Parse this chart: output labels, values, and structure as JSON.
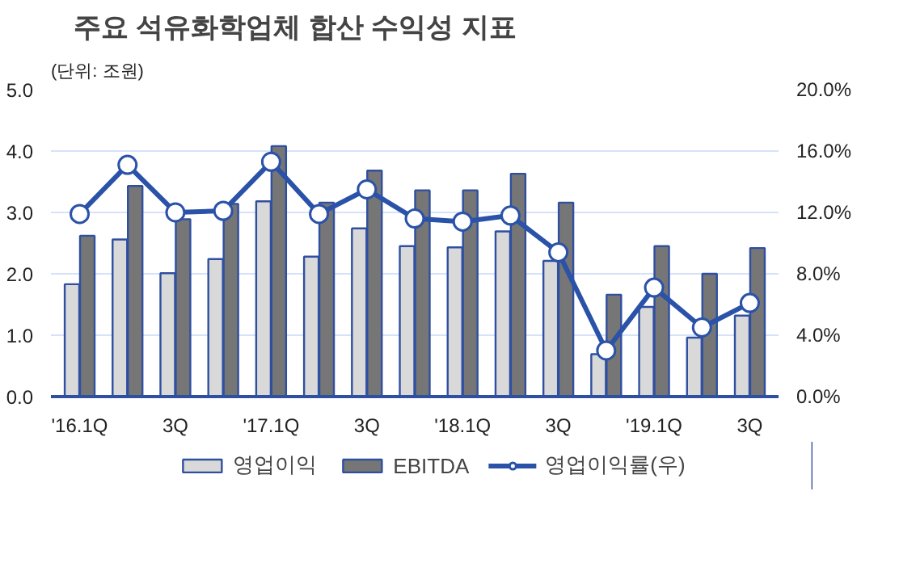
{
  "chart_data": {
    "type": "bar",
    "title": "주요 석유화학업체 합산 수익성 지표",
    "ylabel": "(단위: 조원)",
    "categories": [
      "'16.1Q",
      null,
      "3Q",
      null,
      "'17.1Q",
      null,
      "3Q",
      null,
      "'18.1Q",
      null,
      "3Q",
      null,
      "'19.1Q",
      null,
      "3Q"
    ],
    "series": [
      {
        "name": "영업이익",
        "color": "#d9d9d9",
        "values": [
          1.83,
          2.56,
          2.01,
          2.24,
          3.18,
          2.28,
          2.74,
          2.45,
          2.43,
          2.69,
          2.21,
          0.69,
          1.46,
          0.96,
          1.32
        ]
      },
      {
        "name": "EBITDA",
        "color": "#767676",
        "values": [
          2.62,
          3.43,
          2.89,
          3.14,
          4.08,
          3.16,
          3.68,
          3.36,
          3.36,
          3.63,
          3.16,
          1.66,
          2.45,
          2.0,
          2.42
        ]
      },
      {
        "name": "영업이익률(우)",
        "type": "line",
        "axis": "y2",
        "color": "#2a52a8",
        "marker": "circle",
        "values": [
          11.9,
          15.1,
          12.0,
          12.1,
          15.3,
          11.9,
          13.5,
          11.6,
          11.4,
          11.8,
          9.4,
          3.0,
          7.1,
          4.5,
          6.1
        ]
      }
    ],
    "ylim": [
      0,
      5
    ],
    "yticks": [
      {
        "value": 0,
        "label": "0.0"
      },
      {
        "value": 1,
        "label": "1.0"
      },
      {
        "value": 2,
        "label": "2.0"
      },
      {
        "value": 3,
        "label": "3.0"
      },
      {
        "value": 4,
        "label": "4.0"
      },
      {
        "value": 5,
        "label": "5.0"
      }
    ],
    "y2lim": [
      0,
      20
    ],
    "y2ticks": [
      {
        "value": 0,
        "label": "0.0%"
      },
      {
        "value": 4,
        "label": "4.0%"
      },
      {
        "value": 8,
        "label": "8.0%"
      },
      {
        "value": 12,
        "label": "12.0%"
      },
      {
        "value": 16,
        "label": "16.0%"
      },
      {
        "value": 20,
        "label": "20.0%"
      }
    ],
    "grid": "y",
    "legend": "bottom"
  }
}
